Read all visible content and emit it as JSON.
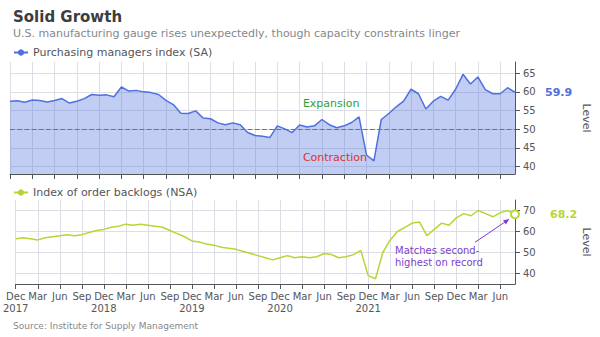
{
  "chart_data": [
    {
      "type": "area",
      "title": "Solid Growth",
      "subtitle": "U.S. manufacturing gauge rises unexpectedly, though capacity constraints linger",
      "source": "Source: Institute for Supply Management",
      "categories": [
        "Dec\n2017",
        null,
        null,
        "Mar",
        null,
        null,
        "Jun",
        null,
        null,
        "Sep",
        null,
        null,
        "Dec\n2018",
        null,
        null,
        "Mar",
        null,
        null,
        "Jun",
        null,
        null,
        "Sep",
        null,
        null,
        "Dec\n2019",
        null,
        null,
        "Mar",
        null,
        null,
        "Jun",
        null,
        null,
        "Sep",
        null,
        null,
        "Dec\n2020",
        null,
        null,
        "Mar",
        null,
        null,
        "Jun",
        null,
        null,
        "Sep",
        null,
        null,
        "Dec\n2021",
        null,
        null,
        "Mar",
        null,
        null,
        "Jun",
        null,
        null,
        "Sep",
        null,
        null,
        "Dec",
        null,
        null,
        "Mar",
        null,
        null,
        "Jun",
        null,
        null
      ],
      "series": [
        {
          "name": "Purchasing managers index (SA)",
          "values": [
            57.5,
            57.6,
            57.2,
            57.8,
            57.7,
            57.3,
            57.7,
            58.2,
            57.0,
            57.5,
            58.2,
            59.3,
            59.1,
            59.2,
            58.7,
            61.3,
            60.2,
            60.4,
            60.0,
            59.8,
            59.3,
            57.7,
            56.6,
            54.3,
            54.2,
            54.9,
            53.0,
            52.8,
            51.7,
            51.2,
            51.7,
            51.2,
            49.1,
            48.3,
            48.1,
            47.8,
            50.9,
            50.1,
            49.1,
            51.1,
            50.6,
            50.9,
            52.6,
            51.2,
            50.4,
            50.9,
            51.8,
            53.3,
            43.1,
            41.5,
            52.6,
            54.2,
            56.0,
            57.5,
            60.7,
            59.5,
            55.4,
            57.5,
            58.8,
            57.8,
            60.7,
            64.7,
            62.1,
            64.0,
            60.6,
            59.5,
            59.5,
            61.1,
            59.9
          ],
          "value_labels": [
            null,
            null,
            null,
            null,
            null,
            null,
            null,
            null,
            null,
            null,
            null,
            null,
            null,
            null,
            null,
            null,
            null,
            null,
            null,
            null,
            null,
            null,
            null,
            null,
            null,
            null,
            null,
            null,
            null,
            null,
            null,
            null,
            null,
            null,
            null,
            null,
            null,
            null,
            null,
            null,
            null,
            null,
            null,
            null,
            null,
            null,
            null,
            null,
            null,
            null,
            null,
            null,
            null,
            null,
            null,
            null,
            null,
            null,
            null,
            null,
            null,
            null,
            null,
            null,
            null,
            null,
            null,
            null,
            "59.9"
          ]
        }
      ],
      "ylabel": "Level",
      "ylim": [
        38,
        68
      ],
      "yticks": [
        40,
        45,
        50,
        55,
        60,
        65
      ],
      "hline": 50,
      "annotations": [
        {
          "text": "Expansion",
          "color": "#2e9d3a"
        },
        {
          "text": "Contraction",
          "color": "#d9342b"
        }
      ],
      "grid": true,
      "legend": "upper left",
      "tick_labels": "y"
    },
    {
      "type": "line",
      "categories": [
        "Dec\n2017",
        null,
        null,
        "Mar",
        null,
        null,
        "Jun",
        null,
        null,
        "Sep",
        null,
        null,
        "Dec\n2018",
        null,
        null,
        "Mar",
        null,
        null,
        "Jun",
        null,
        null,
        "Sep",
        null,
        null,
        "Dec\n2019",
        null,
        null,
        "Mar",
        null,
        null,
        "Jun",
        null,
        null,
        "Sep",
        null,
        null,
        "Dec\n2020",
        null,
        null,
        "Mar",
        null,
        null,
        "Jun",
        null,
        null,
        "Sep",
        null,
        null,
        "Dec\n2021",
        null,
        null,
        "Mar",
        null,
        null,
        "Jun",
        null,
        null,
        "Sep",
        null,
        null,
        "Dec",
        null,
        null,
        "Mar",
        null,
        null,
        "Jun",
        null,
        null
      ],
      "series": [
        {
          "name": "Index of order backlogs (NSA)",
          "values": [
            56.5,
            57.0,
            56.5,
            56.0,
            57.0,
            57.5,
            58.0,
            58.5,
            58.0,
            58.5,
            59.5,
            60.5,
            61.0,
            62.0,
            62.5,
            63.5,
            63.0,
            63.5,
            63.0,
            62.5,
            62.0,
            60.5,
            59.0,
            57.5,
            55.5,
            55.0,
            54.0,
            53.5,
            52.5,
            52.0,
            51.5,
            50.5,
            49.5,
            48.5,
            47.5,
            46.5,
            47.5,
            48.5,
            47.5,
            48.0,
            47.5,
            48.0,
            49.5,
            49.0,
            47.5,
            48.0,
            49.0,
            51.0,
            39.0,
            37.5,
            50.0,
            56.0,
            60.0,
            62.0,
            64.0,
            64.5,
            58.0,
            61.0,
            64.0,
            63.0,
            66.5,
            68.5,
            67.5,
            70.0,
            68.5,
            67.0,
            69.0,
            70.0,
            68.2
          ],
          "value_labels": [
            null,
            null,
            null,
            null,
            null,
            null,
            null,
            null,
            null,
            null,
            null,
            null,
            null,
            null,
            null,
            null,
            null,
            null,
            null,
            null,
            null,
            null,
            null,
            null,
            null,
            null,
            null,
            null,
            null,
            null,
            null,
            null,
            null,
            null,
            null,
            null,
            null,
            null,
            null,
            null,
            null,
            null,
            null,
            null,
            null,
            null,
            null,
            null,
            null,
            null,
            null,
            null,
            null,
            null,
            null,
            null,
            null,
            null,
            null,
            null,
            null,
            null,
            null,
            null,
            null,
            null,
            null,
            null,
            "68.2"
          ],
          "marker": "circle"
        }
      ],
      "ylabel": "Level",
      "ylim": [
        35,
        75
      ],
      "yticks": [
        40,
        50,
        60,
        70
      ],
      "annotations": [
        {
          "text": "Matches second-\nhighest on record",
          "color": "#7b3fd0"
        }
      ],
      "grid": true,
      "legend": "upper left"
    }
  ]
}
